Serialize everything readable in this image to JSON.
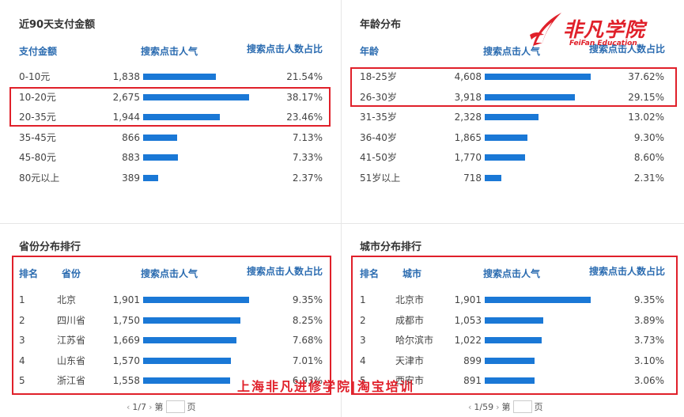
{
  "colors": {
    "bar": "#1a78d6",
    "header": "#2a6bb0",
    "highlight": "#e0202a"
  },
  "logo": {
    "icon": "feifan-logo-icon",
    "text": "非凡学院",
    "sub": "FeiFan Education"
  },
  "watermark": "上海非凡进修学院|淘宝培训",
  "payment": {
    "title": "近90天支付金额",
    "headers": {
      "col1": "支付金额",
      "col2": "搜索点击人气",
      "col3": "搜索点击人数占比"
    },
    "rows": [
      {
        "label": "0-10元",
        "value": "1,838",
        "pct": "21.54%",
        "v": 1838
      },
      {
        "label": "10-20元",
        "value": "2,675",
        "pct": "38.17%",
        "v": 2675
      },
      {
        "label": "20-35元",
        "value": "1,944",
        "pct": "23.46%",
        "v": 1944
      },
      {
        "label": "35-45元",
        "value": "866",
        "pct": "7.13%",
        "v": 866
      },
      {
        "label": "45-80元",
        "value": "883",
        "pct": "7.33%",
        "v": 883
      },
      {
        "label": "80元以上",
        "value": "389",
        "pct": "2.37%",
        "v": 389
      }
    ]
  },
  "age": {
    "title": "年龄分布",
    "headers": {
      "col1": "年龄",
      "col2": "搜索点击人气",
      "col3": "搜索点击人数占比"
    },
    "rows": [
      {
        "label": "18-25岁",
        "value": "4,608",
        "pct": "37.62%",
        "v": 4608
      },
      {
        "label": "26-30岁",
        "value": "3,918",
        "pct": "29.15%",
        "v": 3918
      },
      {
        "label": "31-35岁",
        "value": "2,328",
        "pct": "13.02%",
        "v": 2328
      },
      {
        "label": "36-40岁",
        "value": "1,865",
        "pct": "9.30%",
        "v": 1865
      },
      {
        "label": "41-50岁",
        "value": "1,770",
        "pct": "8.60%",
        "v": 1770
      },
      {
        "label": "51岁以上",
        "value": "718",
        "pct": "2.31%",
        "v": 718
      }
    ]
  },
  "province": {
    "title": "省份分布排行",
    "headers": {
      "rank": "排名",
      "col1": "省份",
      "col2": "搜索点击人气",
      "col3": "搜索点击人数占比"
    },
    "rows": [
      {
        "rank": "1",
        "label": "北京",
        "value": "1,901",
        "pct": "9.35%",
        "v": 1901
      },
      {
        "rank": "2",
        "label": "四川省",
        "value": "1,750",
        "pct": "8.25%",
        "v": 1750
      },
      {
        "rank": "3",
        "label": "江苏省",
        "value": "1,669",
        "pct": "7.68%",
        "v": 1669
      },
      {
        "rank": "4",
        "label": "山东省",
        "value": "1,570",
        "pct": "7.01%",
        "v": 1570
      },
      {
        "rank": "5",
        "label": "浙江省",
        "value": "1,558",
        "pct": "6.93%",
        "v": 1558
      }
    ],
    "pager": {
      "prev": "‹",
      "page": "1/7",
      "next": "›",
      "pre": "第",
      "post": "页"
    }
  },
  "city": {
    "title": "城市分布排行",
    "headers": {
      "rank": "排名",
      "col1": "城市",
      "col2": "搜索点击人气",
      "col3": "搜索点击人数占比"
    },
    "rows": [
      {
        "rank": "1",
        "label": "北京市",
        "value": "1,901",
        "pct": "9.35%",
        "v": 1901
      },
      {
        "rank": "2",
        "label": "成都市",
        "value": "1,053",
        "pct": "3.89%",
        "v": 1053
      },
      {
        "rank": "3",
        "label": "哈尔滨市",
        "value": "1,022",
        "pct": "3.73%",
        "v": 1022
      },
      {
        "rank": "4",
        "label": "天津市",
        "value": "899",
        "pct": "3.10%",
        "v": 899
      },
      {
        "rank": "5",
        "label": "西安市",
        "value": "891",
        "pct": "3.06%",
        "v": 891
      }
    ],
    "pager": {
      "prev": "‹",
      "page": "1/59",
      "next": "›",
      "pre": "第",
      "post": "页"
    }
  }
}
